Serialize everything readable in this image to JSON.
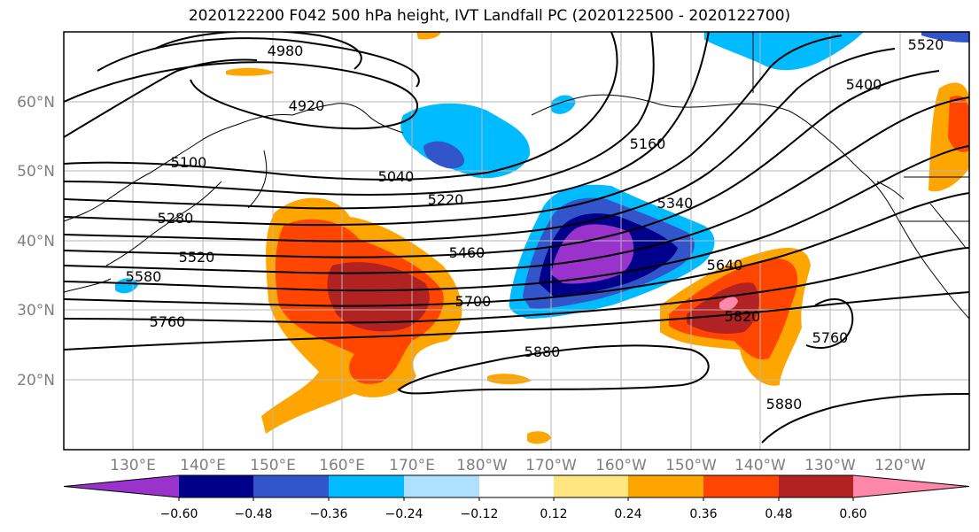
{
  "title": "2020122200 F042 500 hPa height, IVT Landfall PC (2020122500 - 2020122700)",
  "lon_labels": [
    "130°E",
    "140°E",
    "150°E",
    "160°E",
    "170°E",
    "180°W",
    "170°W",
    "160°W",
    "150°W",
    "140°W",
    "130°W",
    "120°W"
  ],
  "lat_labels": [
    "60°N",
    "50°N",
    "40°N",
    "30°N",
    "20°N"
  ],
  "contour_labels": [
    "4980",
    "4920",
    "5100",
    "5040",
    "5220",
    "5160",
    "5400",
    "5340",
    "5280",
    "5460",
    "5520",
    "5580",
    "5700",
    "5640",
    "5760",
    "5820",
    "5880",
    "5760",
    "5880",
    "5520"
  ],
  "colorbar": {
    "ticks": [
      "−0.60",
      "−0.48",
      "−0.36",
      "−0.24",
      "−0.12",
      "0.12",
      "0.24",
      "0.36",
      "0.48",
      "0.60"
    ],
    "colors": [
      "#9933cc",
      "#00008b",
      "#3355cc",
      "#00bbff",
      "#b0e0ff",
      "#ffffff",
      "#ffe680",
      "#ffa500",
      "#ff4500",
      "#b22222",
      "#ff88aa"
    ]
  }
}
